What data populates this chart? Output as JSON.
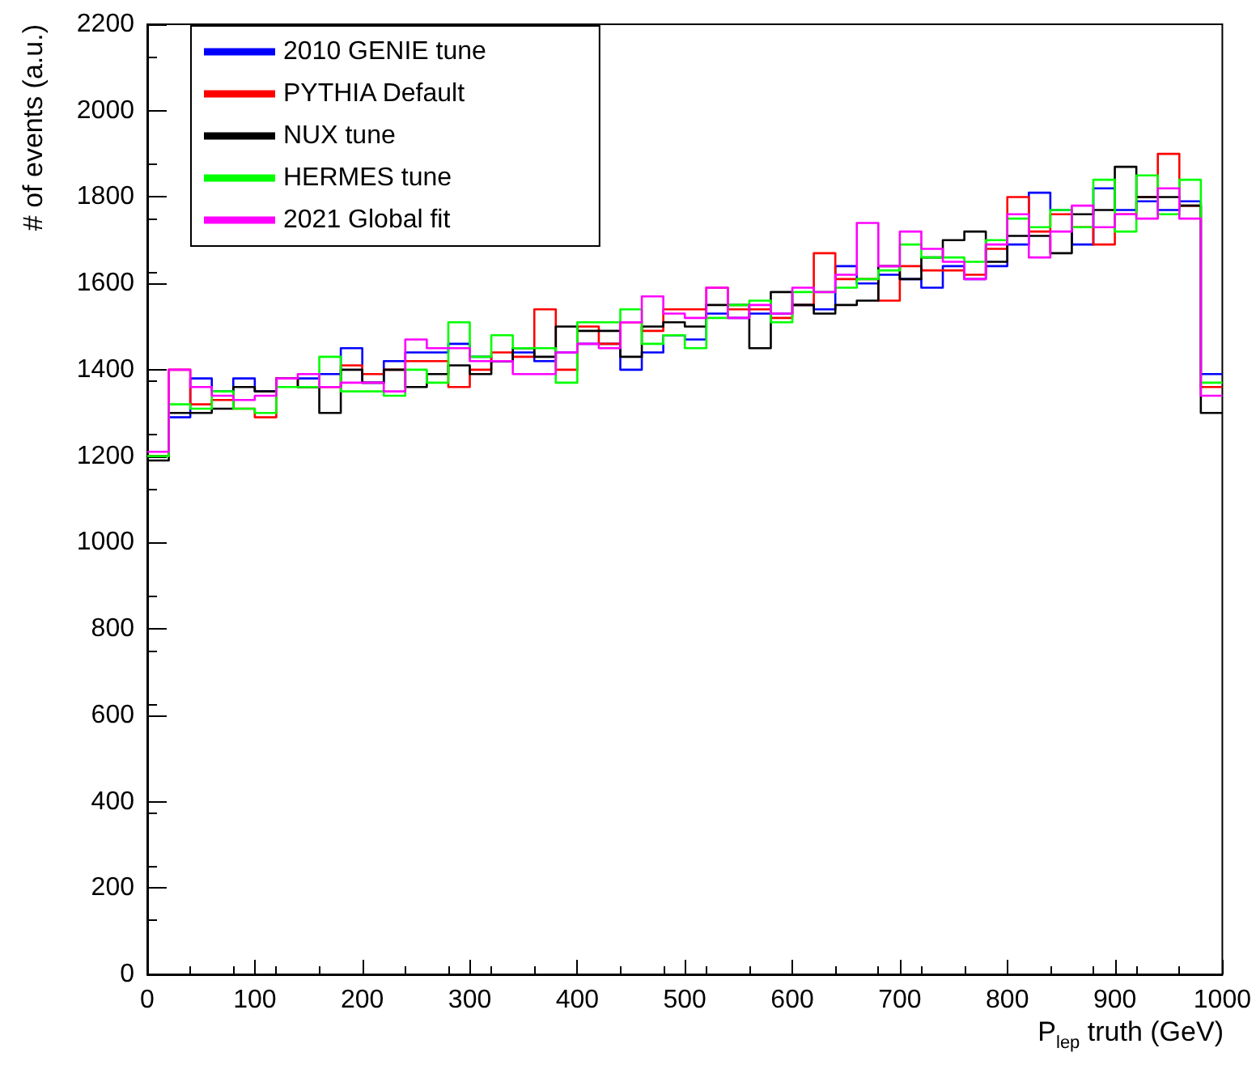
{
  "chart_data": {
    "type": "histogram",
    "xlabel": "P$_{lep}$ truth (GeV)",
    "ylabel": "# of events (a.u.)",
    "bins": [
      0,
      20,
      40,
      60,
      80,
      100,
      120,
      140,
      160,
      180,
      200,
      220,
      240,
      260,
      280,
      300,
      320,
      340,
      360,
      380,
      400,
      420,
      440,
      460,
      480,
      500,
      520,
      540,
      560,
      580,
      600,
      620,
      640,
      660,
      680,
      700,
      720,
      740,
      760,
      780,
      800,
      820,
      840,
      860,
      880,
      900,
      920,
      940,
      960,
      980,
      1000
    ],
    "xlim": [
      0,
      1000
    ],
    "xticks": [
      0,
      100,
      200,
      300,
      400,
      500,
      600,
      700,
      800,
      900,
      1000
    ],
    "ylim": [
      0,
      2200
    ],
    "yticks": [
      0,
      200,
      400,
      600,
      800,
      1000,
      1200,
      1400,
      1600,
      1800,
      2000,
      2200
    ],
    "grid": false,
    "legend": "top left",
    "series": [
      {
        "name": "2010 GENIE tune",
        "color": "#0000ff",
        "values": [
          1200,
          1290,
          1380,
          1350,
          1380,
          1350,
          1380,
          1380,
          1390,
          1450,
          1370,
          1420,
          1440,
          1440,
          1460,
          1430,
          1420,
          1440,
          1420,
          1440,
          1460,
          1460,
          1400,
          1440,
          1480,
          1470,
          1530,
          1520,
          1530,
          1530,
          1550,
          1540,
          1640,
          1600,
          1620,
          1610,
          1590,
          1640,
          1610,
          1640,
          1690,
          1810,
          1770,
          1690,
          1820,
          1770,
          1790,
          1770,
          1790,
          1390
        ]
      },
      {
        "name": "PYTHIA Default",
        "color": "#ff0000",
        "values": [
          1200,
          1400,
          1320,
          1330,
          1310,
          1290,
          1380,
          1360,
          1360,
          1410,
          1390,
          1400,
          1420,
          1420,
          1360,
          1400,
          1440,
          1430,
          1540,
          1400,
          1500,
          1460,
          1510,
          1490,
          1540,
          1540,
          1590,
          1540,
          1540,
          1520,
          1550,
          1670,
          1610,
          1610,
          1560,
          1640,
          1630,
          1630,
          1620,
          1680,
          1800,
          1720,
          1760,
          1730,
          1690,
          1760,
          1800,
          1900,
          1780,
          1360
        ]
      },
      {
        "name": "NUX tune",
        "color": "#000000",
        "values": [
          1190,
          1300,
          1300,
          1310,
          1360,
          1350,
          1380,
          1360,
          1300,
          1400,
          1370,
          1400,
          1360,
          1390,
          1410,
          1390,
          1420,
          1450,
          1430,
          1500,
          1490,
          1490,
          1430,
          1500,
          1510,
          1500,
          1550,
          1550,
          1450,
          1580,
          1550,
          1530,
          1550,
          1560,
          1640,
          1610,
          1660,
          1700,
          1720,
          1650,
          1710,
          1710,
          1670,
          1760,
          1770,
          1870,
          1800,
          1800,
          1780,
          1300
        ]
      },
      {
        "name": "HERMES tune",
        "color": "#00ff00",
        "values": [
          1200,
          1320,
          1310,
          1350,
          1310,
          1300,
          1360,
          1360,
          1430,
          1350,
          1350,
          1340,
          1400,
          1370,
          1510,
          1430,
          1480,
          1450,
          1450,
          1370,
          1510,
          1510,
          1540,
          1460,
          1480,
          1450,
          1520,
          1550,
          1560,
          1510,
          1580,
          1580,
          1590,
          1610,
          1630,
          1690,
          1660,
          1660,
          1650,
          1700,
          1750,
          1730,
          1770,
          1730,
          1840,
          1720,
          1850,
          1760,
          1840,
          1370
        ]
      },
      {
        "name": "2021 Global fit",
        "color": "#ff00ff",
        "values": [
          1210,
          1400,
          1360,
          1340,
          1330,
          1340,
          1380,
          1390,
          1360,
          1370,
          1370,
          1350,
          1470,
          1450,
          1450,
          1420,
          1420,
          1390,
          1390,
          1440,
          1460,
          1450,
          1510,
          1570,
          1530,
          1520,
          1590,
          1520,
          1550,
          1530,
          1590,
          1580,
          1620,
          1740,
          1640,
          1720,
          1680,
          1650,
          1610,
          1690,
          1760,
          1660,
          1720,
          1780,
          1730,
          1760,
          1750,
          1820,
          1750,
          1340
        ]
      }
    ]
  }
}
